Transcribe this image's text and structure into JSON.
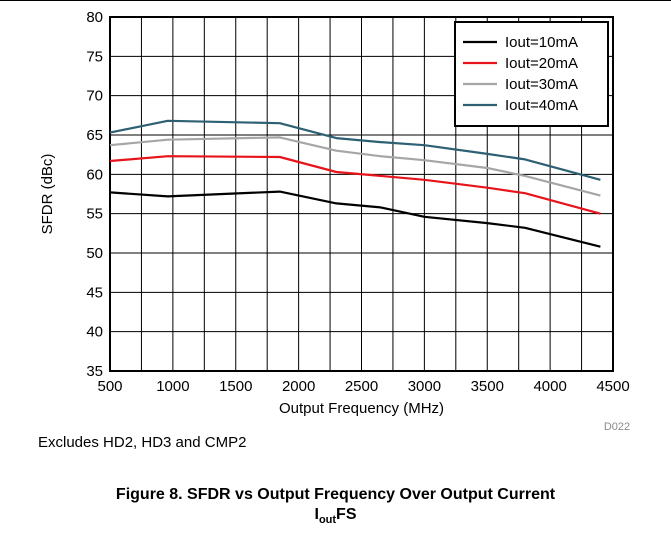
{
  "note": "Excludes HD2, HD3 and CMP2",
  "caption": {
    "line1": "Figure 8. SFDR vs Output Frequency Over Output Current",
    "line2_base": "I",
    "line2_sub": "out",
    "line2_suffix": "FS"
  },
  "chart_data": {
    "type": "line",
    "id_label": "D022",
    "xlabel": "Output Frequency (MHz)",
    "ylabel": "SFDR (dBc)",
    "xlim": [
      500,
      4500
    ],
    "ylim": [
      35,
      80
    ],
    "xticks": [
      500,
      1000,
      1500,
      2000,
      2500,
      3000,
      3500,
      4000,
      4500
    ],
    "yticks": [
      35,
      40,
      45,
      50,
      55,
      60,
      65,
      70,
      75,
      80
    ],
    "x_minor_step": 250,
    "grid": true,
    "legend_position": "top-right",
    "series": [
      {
        "name": "Iout=10mA",
        "color": "#000000",
        "x": [
          500,
          960,
          1850,
          2300,
          2650,
          3000,
          3500,
          3800,
          4400
        ],
        "y": [
          57.7,
          57.2,
          57.8,
          56.3,
          55.8,
          54.6,
          53.8,
          53.2,
          50.8
        ]
      },
      {
        "name": "Iout=20mA",
        "color": "#e8141b",
        "x": [
          500,
          960,
          1850,
          2300,
          2650,
          3000,
          3500,
          3800,
          4400
        ],
        "y": [
          61.7,
          62.3,
          62.2,
          60.3,
          59.8,
          59.3,
          58.3,
          57.6,
          55.0
        ]
      },
      {
        "name": "Iout=30mA",
        "color": "#a6a6a6",
        "x": [
          500,
          960,
          1850,
          2300,
          2650,
          3000,
          3500,
          3800,
          4400
        ],
        "y": [
          63.7,
          64.4,
          64.7,
          63.0,
          62.3,
          61.8,
          60.8,
          59.8,
          57.3
        ]
      },
      {
        "name": "Iout=40mA",
        "color": "#2e6073",
        "x": [
          500,
          960,
          1850,
          2300,
          2650,
          3000,
          3500,
          3800,
          4400
        ],
        "y": [
          65.3,
          66.8,
          66.5,
          64.6,
          64.1,
          63.7,
          62.6,
          61.9,
          59.3
        ]
      }
    ]
  }
}
